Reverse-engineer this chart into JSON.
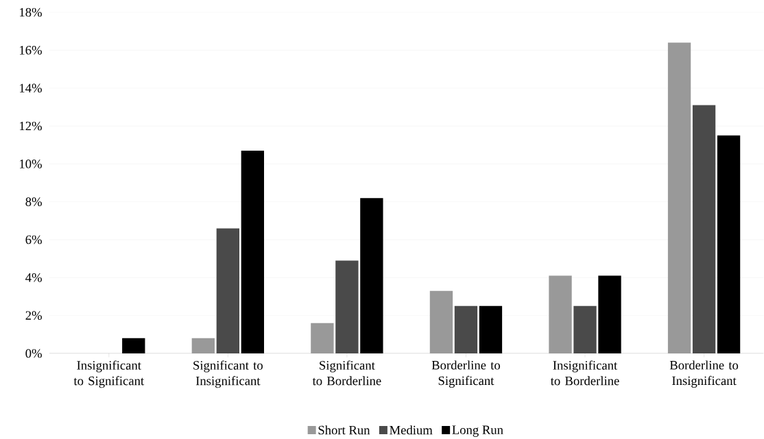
{
  "chart_data": {
    "type": "bar",
    "categories": [
      "Insignificant to Significant",
      "Significant to Insignificant",
      "Significant to Borderline",
      "Borderline to Significant",
      "Insignificant to Borderline",
      "Borderline to Insignificant"
    ],
    "series": [
      {
        "name": "Short Run",
        "color": "#999999",
        "values": [
          0,
          0.8,
          1.6,
          3.3,
          4.1,
          16.4
        ]
      },
      {
        "name": "Medium",
        "color": "#4a4a4a",
        "values": [
          0,
          6.6,
          4.9,
          2.5,
          2.5,
          13.1
        ]
      },
      {
        "name": "Long Run",
        "color": "#000000",
        "values": [
          0.8,
          10.7,
          8.2,
          2.5,
          4.1,
          11.5
        ]
      }
    ],
    "ylim": [
      0,
      18
    ],
    "yticks": [
      {
        "value": 0,
        "label": "0%"
      },
      {
        "value": 2,
        "label": "2%"
      },
      {
        "value": 4,
        "label": "4%"
      },
      {
        "value": 6,
        "label": "6%"
      },
      {
        "value": 8,
        "label": "8%"
      },
      {
        "value": 10,
        "label": "10%"
      },
      {
        "value": 12,
        "label": "12%"
      },
      {
        "value": 14,
        "label": "14%"
      },
      {
        "value": 16,
        "label": "16%"
      },
      {
        "value": 18,
        "label": "18%"
      }
    ],
    "grid": "y",
    "legend": "bottom"
  }
}
